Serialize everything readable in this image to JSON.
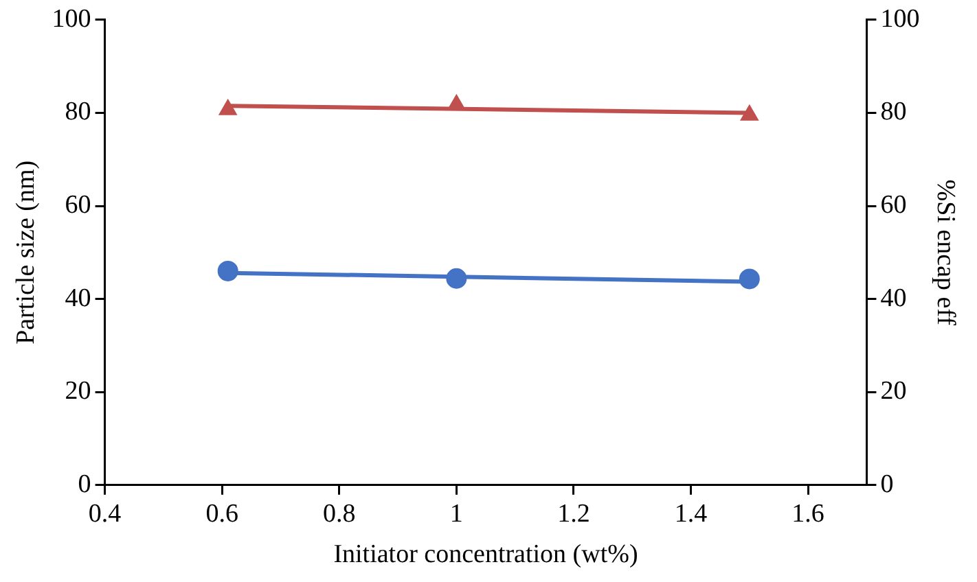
{
  "chart_data": {
    "type": "scatter",
    "xlabel": "Initiator concentration (wt%)",
    "ylabel": "Particle size (nm)",
    "y2label": "%Si encap eff",
    "xlim": [
      0.4,
      1.7
    ],
    "xticks": [
      0.4,
      0.6,
      0.8,
      1,
      1.2,
      1.4,
      1.6
    ],
    "ylim": [
      0,
      100
    ],
    "yticks": [
      0,
      20,
      40,
      60,
      80,
      100
    ],
    "y2lim": [
      0,
      100
    ],
    "y2ticks": [
      0,
      20,
      40,
      60,
      80,
      100
    ],
    "grid": false,
    "legend": false,
    "series": [
      {
        "color": "#4472c4",
        "marker": "circle",
        "x": [
          0.61,
          1,
          1.5
        ],
        "values": [
          46,
          44.4,
          44.3
        ]
      },
      {
        "type": "line",
        "color": "#4472c4",
        "marker": "none",
        "x": [
          0.61,
          1.5
        ],
        "values": [
          45.6,
          43.7
        ]
      },
      {
        "color": "#c0504d",
        "marker": "triangle",
        "axis": "y2",
        "x": [
          0.61,
          1,
          1.5
        ],
        "values": [
          80.7,
          81.7,
          79.5
        ]
      },
      {
        "type": "line",
        "color": "#c0504d",
        "marker": "none",
        "axis": "y2",
        "x": [
          0.61,
          1.5
        ],
        "values": [
          81.5,
          80
        ]
      }
    ]
  }
}
